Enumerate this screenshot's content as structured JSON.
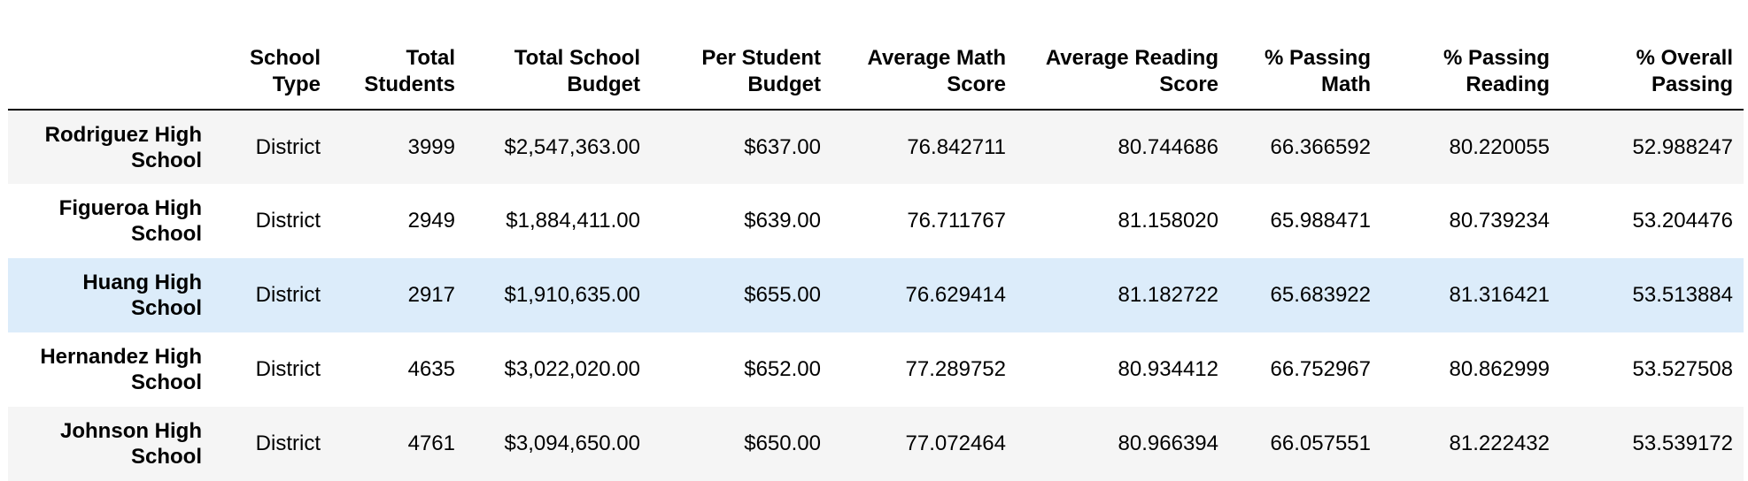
{
  "table": {
    "columns": [
      {
        "key": "index",
        "label": ""
      },
      {
        "key": "school_type",
        "label_line1": "School",
        "label_line2": "Type"
      },
      {
        "key": "total_students",
        "label_line1": "Total",
        "label_line2": "Students"
      },
      {
        "key": "total_budget",
        "label_line1": "Total School",
        "label_line2": "Budget"
      },
      {
        "key": "per_student_budget",
        "label_line1": "Per Student",
        "label_line2": "Budget"
      },
      {
        "key": "avg_math",
        "label_line1": "Average Math",
        "label_line2": "Score"
      },
      {
        "key": "avg_reading",
        "label_line1": "Average Reading",
        "label_line2": "Score"
      },
      {
        "key": "pct_math",
        "label_line1": "% Passing",
        "label_line2": "Math"
      },
      {
        "key": "pct_reading",
        "label_line1": "% Passing",
        "label_line2": "Reading"
      },
      {
        "key": "pct_overall",
        "label_line1": "% Overall",
        "label_line2": "Passing"
      }
    ],
    "rows": [
      {
        "name_line1": "Rodriguez High",
        "name_line2": "School",
        "school_type": "District",
        "total_students": "3999",
        "total_budget": "$2,547,363.00",
        "per_student_budget": "$637.00",
        "avg_math": "76.842711",
        "avg_reading": "80.744686",
        "pct_math": "66.366592",
        "pct_reading": "80.220055",
        "pct_overall": "52.988247"
      },
      {
        "name_line1": "Figueroa High",
        "name_line2": "School",
        "school_type": "District",
        "total_students": "2949",
        "total_budget": "$1,884,411.00",
        "per_student_budget": "$639.00",
        "avg_math": "76.711767",
        "avg_reading": "81.158020",
        "pct_math": "65.988471",
        "pct_reading": "80.739234",
        "pct_overall": "53.204476"
      },
      {
        "name_line1": "Huang High",
        "name_line2": "School",
        "school_type": "District",
        "total_students": "2917",
        "total_budget": "$1,910,635.00",
        "per_student_budget": "$655.00",
        "avg_math": "76.629414",
        "avg_reading": "81.182722",
        "pct_math": "65.683922",
        "pct_reading": "81.316421",
        "pct_overall": "53.513884"
      },
      {
        "name_line1": "Hernandez High",
        "name_line2": "School",
        "school_type": "District",
        "total_students": "4635",
        "total_budget": "$3,022,020.00",
        "per_student_budget": "$652.00",
        "avg_math": "77.289752",
        "avg_reading": "80.934412",
        "pct_math": "66.752967",
        "pct_reading": "80.862999",
        "pct_overall": "53.527508"
      },
      {
        "name_line1": "Johnson High",
        "name_line2": "School",
        "school_type": "District",
        "total_students": "4761",
        "total_budget": "$3,094,650.00",
        "per_student_budget": "$650.00",
        "avg_math": "77.072464",
        "avg_reading": "80.966394",
        "pct_math": "66.057551",
        "pct_reading": "81.222432",
        "pct_overall": "53.539172"
      }
    ],
    "colors": {
      "stripe": "#f5f5f5",
      "hover": "#dcecfa",
      "header_rule": "#000000"
    }
  }
}
